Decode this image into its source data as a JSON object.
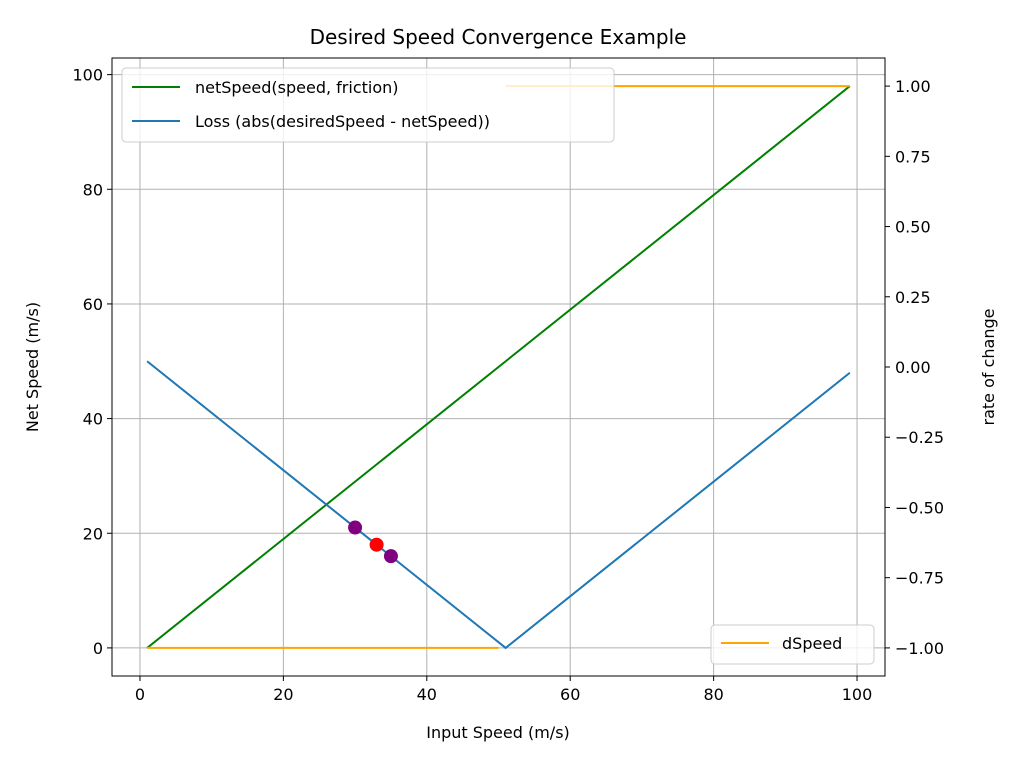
{
  "chart_data": {
    "type": "line",
    "title": "Desired Speed Convergence Example",
    "xlabel": "Input Speed (m/s)",
    "ylabel": "Net Speed (m/s)",
    "y2label": "rate of change",
    "xlim": [
      -3.9,
      103.9
    ],
    "ylim": [
      -4.9,
      102.9
    ],
    "y2lim": [
      -1.1,
      1.1
    ],
    "xticks": [
      0,
      20,
      40,
      60,
      80,
      100
    ],
    "yticks": [
      0,
      20,
      40,
      60,
      80,
      100
    ],
    "y2ticks": [
      1.0,
      0.75,
      0.5,
      0.25,
      0.0,
      -0.25,
      -0.5,
      -0.75,
      -1.0
    ],
    "y2tick_labels": [
      "1.00",
      "0.75",
      "0.50",
      "0.25",
      "0.00",
      "−0.25",
      "−0.50",
      "−0.75",
      "−1.00"
    ],
    "grid": true,
    "series": [
      {
        "name": "netSpeed(speed, friction)",
        "axis": "left",
        "color": "#008000",
        "x": [
          1,
          99
        ],
        "y": [
          0,
          98
        ]
      },
      {
        "name": "Loss (abs(desiredSpeed - netSpeed))",
        "axis": "left",
        "color": "#1f77b4",
        "x": [
          1,
          51,
          99
        ],
        "y": [
          50,
          0,
          48
        ]
      },
      {
        "name": "dSpeed",
        "axis": "right",
        "color": "#ffa500",
        "x": [
          1,
          50,
          null,
          51,
          99
        ],
        "y": [
          -1,
          -1,
          null,
          1,
          1
        ]
      }
    ],
    "markers": [
      {
        "x": 30,
        "y": 21,
        "color": "#800080"
      },
      {
        "x": 33,
        "y": 18,
        "color": "#ff0000"
      },
      {
        "x": 35,
        "y": 16,
        "color": "#800080"
      }
    ],
    "legends": [
      {
        "placement": "top-left",
        "entries": [
          "netSpeed(speed, friction)",
          "Loss (abs(desiredSpeed - netSpeed))"
        ]
      },
      {
        "placement": "bottom-right",
        "entries": [
          "dSpeed"
        ]
      }
    ]
  }
}
